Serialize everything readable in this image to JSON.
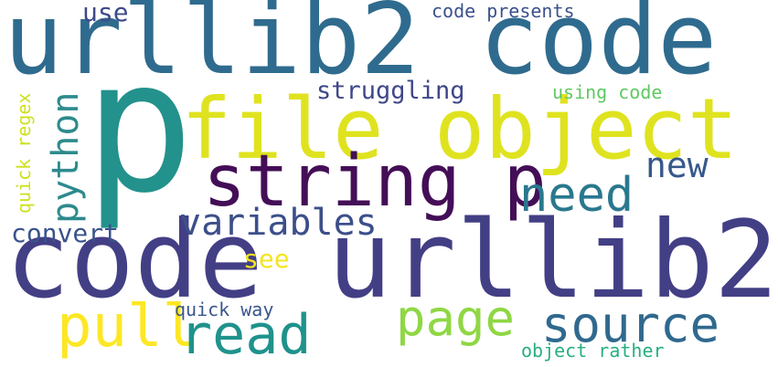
{
  "words": [
    {
      "text": "urllib2 code",
      "color": "#2f6b8e"
    },
    {
      "text": "p",
      "color": "#23918c"
    },
    {
      "text": "file object",
      "color": "#dfe31f"
    },
    {
      "text": "string p",
      "color": "#440e57"
    },
    {
      "text": "code urllib2",
      "color": "#433f85"
    },
    {
      "text": "python",
      "color": "#2d8a8d"
    },
    {
      "text": "need",
      "color": "#2a788e"
    },
    {
      "text": "new",
      "color": "#38588c"
    },
    {
      "text": "variables",
      "color": "#3c4f8a"
    },
    {
      "text": "struggling",
      "color": "#3f4788"
    },
    {
      "text": "use",
      "color": "#3e4a89"
    },
    {
      "text": "code presents",
      "color": "#3b528b"
    },
    {
      "text": "using code",
      "color": "#5ec962"
    },
    {
      "text": "quick regex",
      "color": "#cde11d"
    },
    {
      "text": "convert",
      "color": "#3a538b"
    },
    {
      "text": "see",
      "color": "#f3e51e"
    },
    {
      "text": "pull",
      "color": "#fde725"
    },
    {
      "text": "read",
      "color": "#1f928c"
    },
    {
      "text": "quick way",
      "color": "#39568c"
    },
    {
      "text": "page",
      "color": "#8fd744"
    },
    {
      "text": "source",
      "color": "#30698e"
    },
    {
      "text": "object rather",
      "color": "#29af7f"
    }
  ]
}
